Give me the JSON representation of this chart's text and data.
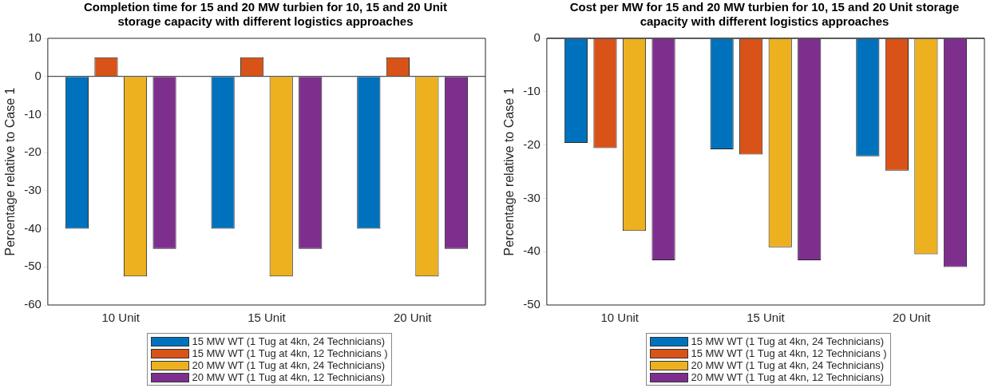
{
  "chart_data": [
    {
      "type": "bar",
      "title": "Completion time for 15 and 20 MW turbien for 10, 15 and 20 Unit storage capacity with different logistics approaches",
      "ylabel": "Percentage relative to Case 1",
      "categories": [
        "10 Unit",
        "15 Unit",
        "20 Unit"
      ],
      "series": [
        {
          "name": "15 MW WT (1 Tug at 4kn, 24 Technicians)",
          "color": "#0072bd",
          "values": [
            -40,
            -40,
            -40
          ]
        },
        {
          "name": "15 MW WT (1 Tug at 4kn, 12 Technicians )",
          "color": "#d95319",
          "values": [
            5,
            5,
            5
          ]
        },
        {
          "name": "20 MW WT (1 Tug at 4kn, 24 Technicians)",
          "color": "#edb120",
          "values": [
            -52.5,
            -52.5,
            -52.5
          ]
        },
        {
          "name": "20 MW WT (1 Tug at 4kn, 12 Technicians)",
          "color": "#7e2f8e",
          "values": [
            -45.3,
            -45.3,
            -45.3
          ]
        }
      ],
      "ylim": [
        -60,
        10
      ],
      "yticks": [
        -60,
        -50,
        -40,
        -30,
        -20,
        -10,
        0,
        10
      ],
      "legend": "bottom"
    },
    {
      "type": "bar",
      "title": "Cost per MW for 15 and 20 MW turbien for 10, 15 and 20 Unit storage capacity with different logistics approaches",
      "ylabel": "Percentage relative to Case 1",
      "categories": [
        "10 Unit",
        "15 Unit",
        "20 Unit"
      ],
      "series": [
        {
          "name": "15 MW WT (1 Tug at 4kn, 24 Technicians)",
          "color": "#0072bd",
          "values": [
            -19.6,
            -20.8,
            -22.1
          ]
        },
        {
          "name": "15 MW WT (1 Tug at 4kn, 12 Technicians )",
          "color": "#d95319",
          "values": [
            -20.6,
            -21.8,
            -24.8
          ]
        },
        {
          "name": "20 MW WT (1 Tug at 4kn, 24 Technicians)",
          "color": "#edb120",
          "values": [
            -36.1,
            -39.2,
            -40.5
          ]
        },
        {
          "name": "20 MW WT (1 Tug at 4kn, 12 Technicians)",
          "color": "#7e2f8e",
          "values": [
            -41.6,
            -41.6,
            -42.9
          ]
        }
      ],
      "ylim": [
        -50,
        0
      ],
      "yticks": [
        -50,
        -40,
        -30,
        -20,
        -10,
        0
      ],
      "legend": "bottom"
    }
  ]
}
